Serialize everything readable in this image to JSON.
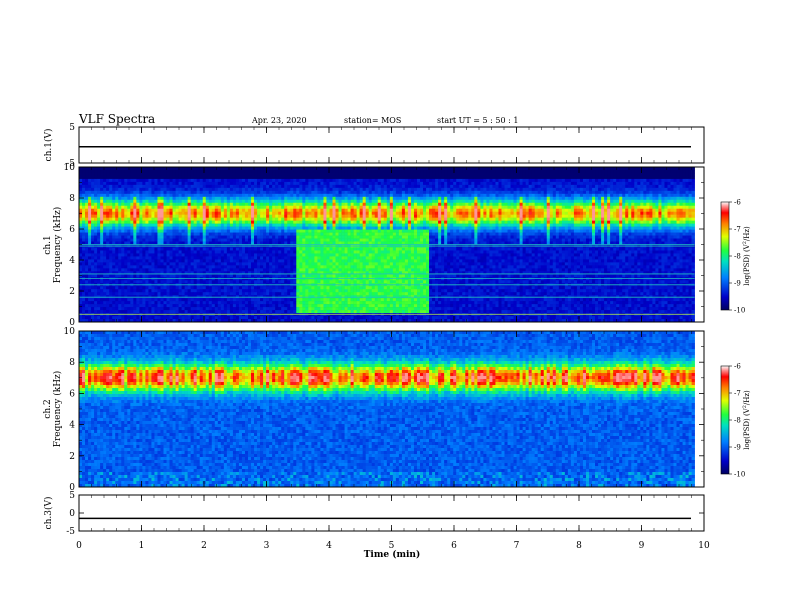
{
  "header": {
    "title": "VLF Spectra",
    "date": "Apr. 23, 2020",
    "station": "station= MOS",
    "start": "start UT =  5 : 50 : 1"
  },
  "colorbar_label_main": "log(PSD) (V",
  "colorbar_label_sup": "2",
  "colorbar_label_end": "/Hz)",
  "colors": {
    "low": "#00008b",
    "mid_low": "#0060ff",
    "mid": "#00ff80",
    "mid_high": "#ffd000",
    "high": "#ff0000",
    "top": "#ffffff"
  },
  "chart_data": [
    {
      "type": "line",
      "panel": "ch1-waveform",
      "ylabel": "ch.1(V)",
      "ylim": [
        -5,
        5
      ],
      "yticks": [
        "5",
        "-5"
      ],
      "x": [
        0,
        10
      ],
      "y": [
        -0.5,
        -0.5
      ]
    },
    {
      "type": "heatmap",
      "panel": "ch1-spectrogram",
      "ylabel_channel": "ch.1",
      "ylabel": "Frequency (kHz)",
      "ylim": [
        0,
        10
      ],
      "yticks": [
        "0",
        "2",
        "4",
        "6",
        "8",
        "10"
      ],
      "xlim": [
        0,
        9.85
      ],
      "features": {
        "band_center_khz": 7.0,
        "enhanced_emission_minutes": [
          3.5,
          5.6
        ],
        "enhanced_emission_khz": [
          0.5,
          6.0
        ]
      },
      "colorbar": {
        "range": [
          -10,
          -6
        ],
        "ticks": [
          "-6",
          "-7",
          "-8",
          "-9",
          "-10"
        ]
      }
    },
    {
      "type": "heatmap",
      "panel": "ch2-spectrogram",
      "ylabel_channel": "ch.2",
      "ylabel": "Frequency (kHz)",
      "ylim": [
        0,
        10
      ],
      "yticks": [
        "0",
        "2",
        "4",
        "6",
        "8",
        "10"
      ],
      "xlim": [
        0,
        9.85
      ],
      "features": {
        "band_center_khz": 7.0
      },
      "colorbar": {
        "range": [
          -10,
          -6
        ],
        "ticks": [
          "-6",
          "-7",
          "-8",
          "-9",
          "-10"
        ]
      }
    },
    {
      "type": "line",
      "panel": "ch3-waveform",
      "ylabel": "ch.3(V)",
      "ylim": [
        -5,
        5
      ],
      "yticks": [
        "5",
        "0",
        "-5"
      ],
      "x": [
        0,
        10
      ],
      "y": [
        -1.5,
        -1.5
      ]
    }
  ],
  "xaxis": {
    "label": "Time (min)",
    "ticks": [
      "0",
      "1",
      "2",
      "3",
      "4",
      "5",
      "6",
      "7",
      "8",
      "9",
      "10"
    ],
    "xlim": [
      0,
      10
    ]
  }
}
